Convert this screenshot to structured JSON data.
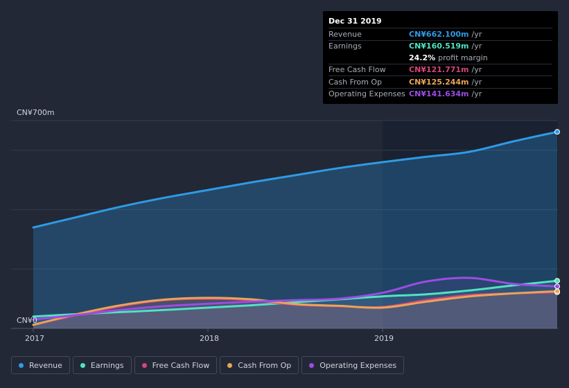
{
  "chart_data": {
    "type": "line",
    "x": [
      2017.0,
      2017.25,
      2017.5,
      2017.75,
      2018.0,
      2018.25,
      2018.5,
      2018.75,
      2019.0,
      2019.25,
      2019.5,
      2019.75,
      2020.0
    ],
    "x_tick_labels": [
      "2017",
      "2018",
      "2019"
    ],
    "x_ticks": [
      2017,
      2018,
      2019
    ],
    "y_top_label": "CN¥700m",
    "y_bottom_label": "CN¥0",
    "ylim": [
      0,
      700
    ],
    "unit": "CN¥ m",
    "highlight_from": 2019,
    "series": [
      {
        "name": "Revenue",
        "color": "#2f9be6",
        "values": [
          340,
          375,
          410,
          440,
          466,
          492,
          516,
          540,
          560,
          578,
          595,
          630,
          662
        ]
      },
      {
        "name": "Earnings",
        "color": "#50e3c2",
        "values": [
          40,
          48,
          55,
          62,
          70,
          78,
          88,
          98,
          108,
          115,
          128,
          145,
          160.5
        ]
      },
      {
        "name": "Free Cash Flow",
        "color": "#d6457b",
        "values": [
          12,
          45,
          75,
          95,
          100,
          95,
          80,
          75,
          72,
          95,
          112,
          118,
          121.8
        ]
      },
      {
        "name": "Cash From Op",
        "color": "#e8a55a",
        "values": [
          12,
          48,
          78,
          97,
          103,
          98,
          82,
          76,
          70,
          90,
          108,
          118,
          125.2
        ]
      },
      {
        "name": "Operating Expenses",
        "color": "#9b4de3",
        "values": [
          30,
          45,
          62,
          75,
          83,
          90,
          95,
          100,
          120,
          158,
          170,
          150,
          141.6
        ]
      }
    ]
  },
  "tooltip": {
    "date": "Dec 31 2019",
    "rows": [
      {
        "label": "Revenue",
        "value": "CN¥662.100m",
        "unit": "/yr",
        "color": "#2f9be6"
      },
      {
        "label": "Earnings",
        "value": "CN¥160.519m",
        "unit": "/yr",
        "color": "#50e3c2"
      },
      {
        "label": "",
        "value": "24.2%",
        "unit": "profit margin",
        "color": "#ffffff"
      },
      {
        "label": "Free Cash Flow",
        "value": "CN¥121.771m",
        "unit": "/yr",
        "color": "#d6457b"
      },
      {
        "label": "Cash From Op",
        "value": "CN¥125.244m",
        "unit": "/yr",
        "color": "#e8a55a"
      },
      {
        "label": "Operating Expenses",
        "value": "CN¥141.634m",
        "unit": "/yr",
        "color": "#9b4de3"
      }
    ]
  },
  "legend": [
    {
      "label": "Revenue",
      "color": "#2f9be6"
    },
    {
      "label": "Earnings",
      "color": "#50e3c2"
    },
    {
      "label": "Free Cash Flow",
      "color": "#d6457b"
    },
    {
      "label": "Cash From Op",
      "color": "#e8a55a"
    },
    {
      "label": "Operating Expenses",
      "color": "#9b4de3"
    }
  ]
}
